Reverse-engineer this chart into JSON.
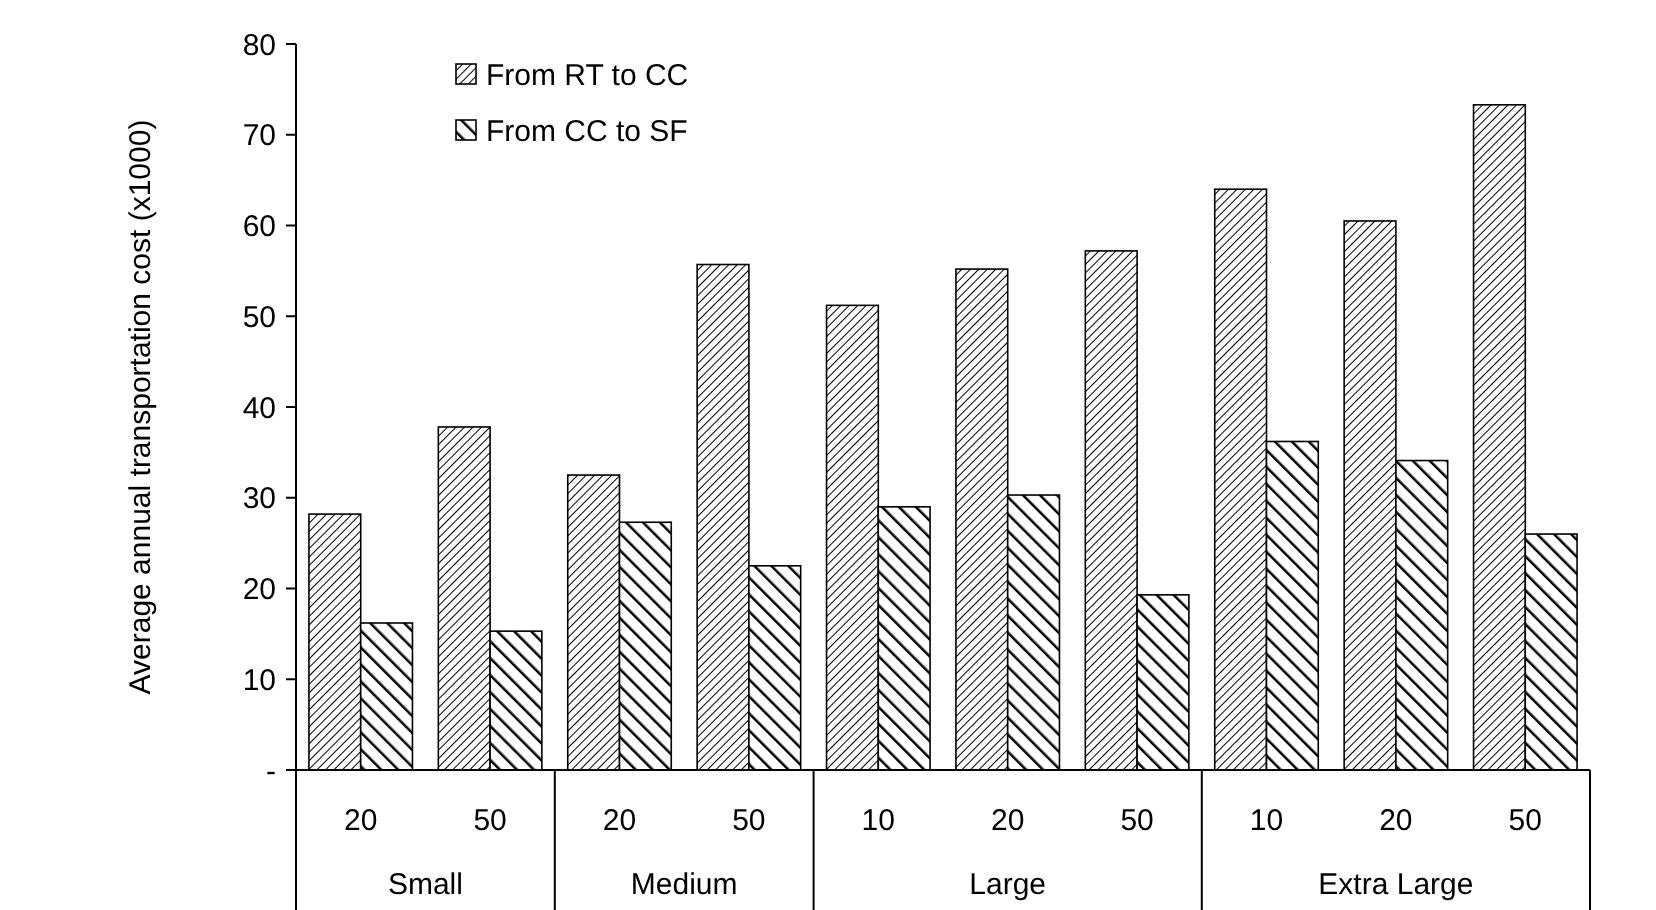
{
  "chart_data": {
    "type": "bar",
    "ylabel": "Average annual transportation cost (x1000)",
    "categories": [
      "20",
      "50",
      "20",
      "50",
      "10",
      "20",
      "50",
      "10",
      "20",
      "50"
    ],
    "annotations": [
      "Small",
      "Medium",
      "Large",
      "Extra Large"
    ],
    "series": [
      {
        "name": "From RT to CC",
        "color": "#000000",
        "values": [
          28.2,
          37.8,
          32.5,
          55.7,
          51.2,
          55.2,
          57.2,
          64,
          60.5,
          73.3
        ]
      },
      {
        "name": "From CC to SF",
        "color": "#000000",
        "values": [
          16.2,
          15.3,
          27.3,
          22.5,
          29,
          30.3,
          19.3,
          36.2,
          34.1,
          26
        ]
      }
    ],
    "ylim": [
      0,
      80
    ],
    "yticks": [
      {
        "value": 0,
        "label": "-"
      },
      10,
      20,
      30,
      40,
      50,
      60,
      70,
      80
    ],
    "grid": false,
    "legend": "top left"
  }
}
